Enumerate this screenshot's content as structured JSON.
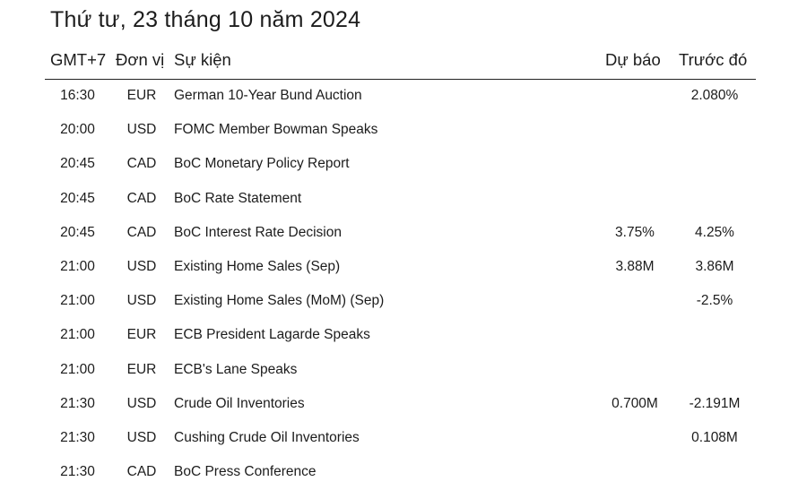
{
  "title": "Thứ tư, 23 tháng 10 năm 2024",
  "header": {
    "time": "GMT+7",
    "unit": "Đơn vị",
    "event": "Sự kiện",
    "forecast": "Dự báo",
    "previous": "Trước đó"
  },
  "rows": [
    {
      "time": "16:30",
      "unit": "EUR",
      "event": "German 10-Year Bund Auction",
      "forecast": "",
      "previous": "2.080%"
    },
    {
      "time": "20:00",
      "unit": "USD",
      "event": "FOMC Member Bowman Speaks",
      "forecast": "",
      "previous": ""
    },
    {
      "time": "20:45",
      "unit": "CAD",
      "event": "BoC Monetary Policy Report",
      "forecast": "",
      "previous": ""
    },
    {
      "time": "20:45",
      "unit": "CAD",
      "event": "BoC Rate Statement",
      "forecast": "",
      "previous": ""
    },
    {
      "time": "20:45",
      "unit": "CAD",
      "event": "BoC Interest Rate Decision",
      "forecast": "3.75%",
      "previous": "4.25%"
    },
    {
      "time": "21:00",
      "unit": "USD",
      "event": "Existing Home Sales (Sep)",
      "forecast": "3.88M",
      "previous": "3.86M"
    },
    {
      "time": "21:00",
      "unit": "USD",
      "event": "Existing Home Sales (MoM) (Sep)",
      "forecast": "",
      "previous": "-2.5%"
    },
    {
      "time": "21:00",
      "unit": "EUR",
      "event": "ECB President Lagarde Speaks",
      "forecast": "",
      "previous": ""
    },
    {
      "time": "21:00",
      "unit": "EUR",
      "event": "ECB's Lane Speaks",
      "forecast": "",
      "previous": ""
    },
    {
      "time": "21:30",
      "unit": "USD",
      "event": "Crude Oil Inventories",
      "forecast": "0.700M",
      "previous": "-2.191M"
    },
    {
      "time": "21:30",
      "unit": "USD",
      "event": "Cushing Crude Oil Inventories",
      "forecast": "",
      "previous": "0.108M"
    },
    {
      "time": "21:30",
      "unit": "CAD",
      "event": "BoC Press Conference",
      "forecast": "",
      "previous": ""
    }
  ]
}
